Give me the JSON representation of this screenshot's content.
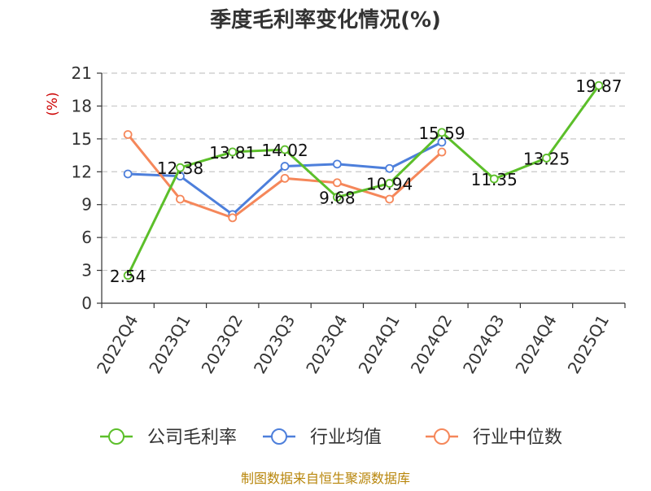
{
  "chart_data": {
    "type": "line",
    "title": "季度毛利率变化情况(%)",
    "ylabel": "(%)",
    "ylim": [
      0,
      21
    ],
    "yticks": [
      0,
      3,
      6,
      9,
      12,
      15,
      18,
      21
    ],
    "categories": [
      "2022Q4",
      "2023Q1",
      "2023Q2",
      "2023Q3",
      "2023Q4",
      "2024Q1",
      "2024Q2",
      "2024Q3",
      "2024Q4",
      "2025Q1"
    ],
    "grid": true,
    "legend_position": "bottom",
    "series": [
      {
        "name": "公司毛利率",
        "color": "#5cbf2a",
        "values": [
          2.54,
          12.38,
          13.81,
          14.02,
          9.68,
          10.94,
          15.59,
          11.35,
          13.25,
          19.87
        ],
        "data_labels": [
          "2.54",
          "12.38",
          "13.81",
          "14.02",
          "9.68",
          "10.94",
          "15.59",
          "11.35",
          "13.25",
          "19.87"
        ]
      },
      {
        "name": "行业均值",
        "color": "#4d7fdb",
        "values": [
          11.8,
          11.6,
          8.1,
          12.5,
          12.7,
          12.3,
          14.7,
          null,
          null,
          null
        ]
      },
      {
        "name": "行业中位数",
        "color": "#f5875a",
        "values": [
          15.4,
          9.5,
          7.8,
          11.4,
          11.0,
          9.5,
          13.8,
          null,
          null,
          null
        ]
      }
    ],
    "source": "制图数据来自恒生聚源数据库"
  },
  "colors": {
    "title": "#333333",
    "axis": "#333333",
    "grid": "#c8c8c8",
    "ylabel": "#cc0000",
    "source": "#b8860b"
  }
}
